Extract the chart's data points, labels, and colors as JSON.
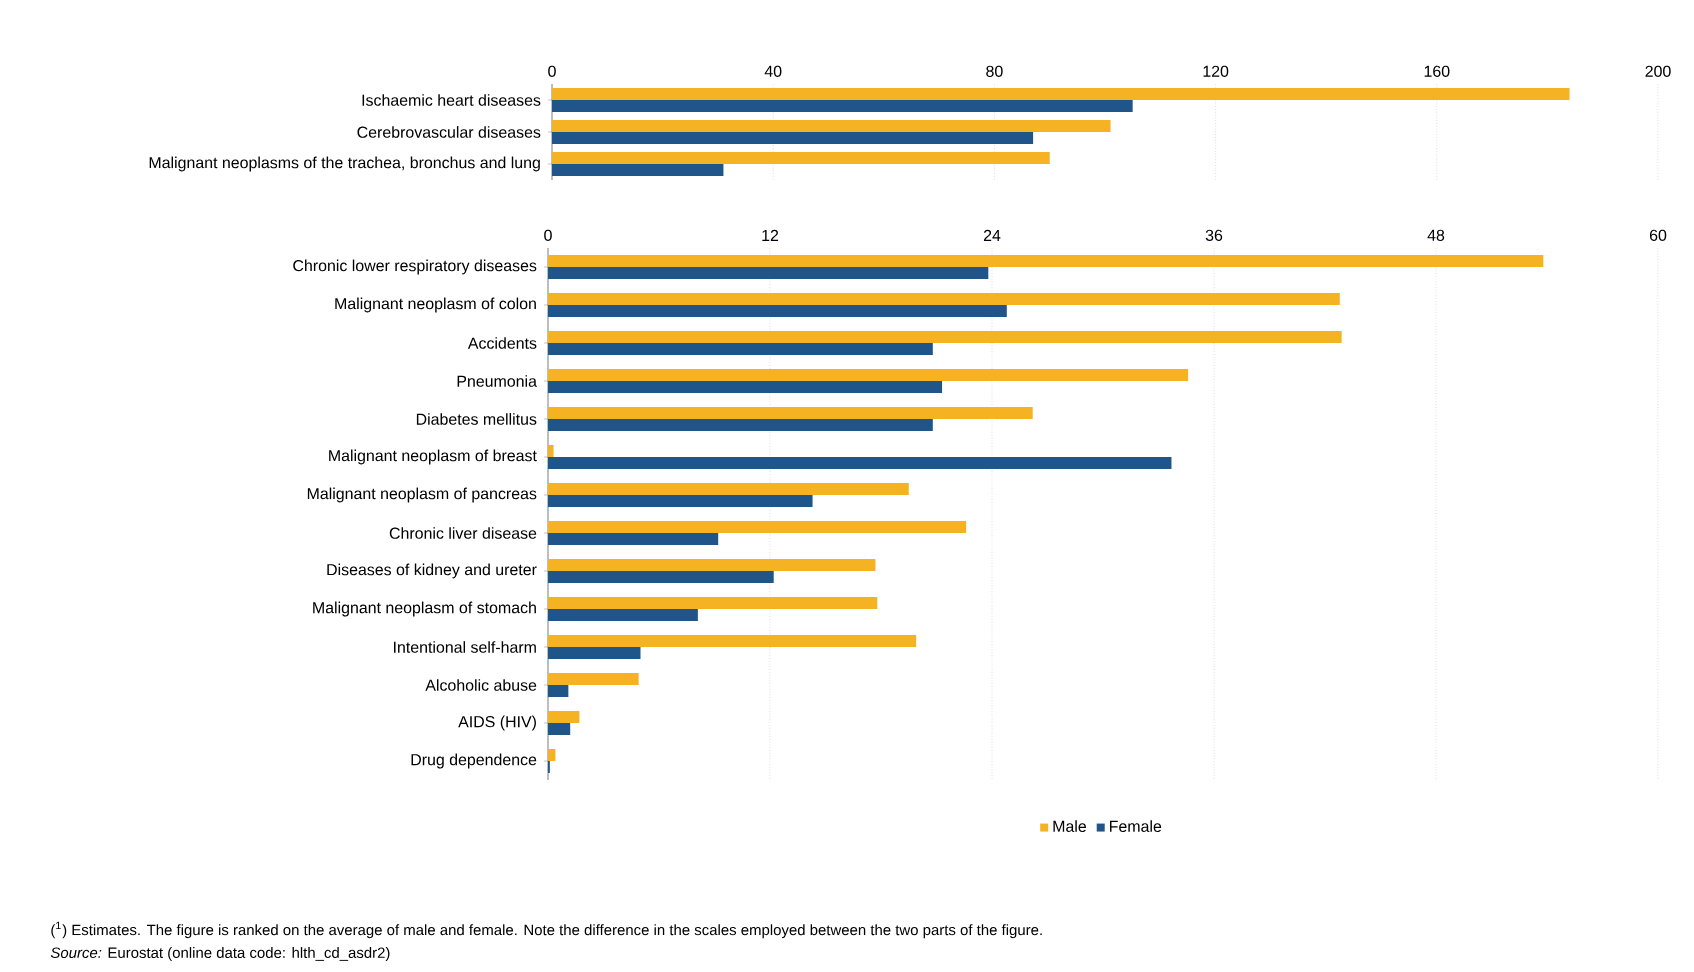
{
  "chart_data": [
    {
      "type": "bar",
      "orientation": "horizontal",
      "categories": [
        "Ischaemic heart diseases",
        "Cerebrovascular diseases",
        "Malignant neoplasms of the trachea, bronchus and lung"
      ],
      "series": [
        {
          "color": "#f5b324",
          "values": [
            184,
            101,
            90
          ]
        },
        {
          "color": "#1f5588",
          "values": [
            105,
            87,
            31
          ]
        }
      ],
      "xlim": [
        0,
        200
      ],
      "xticks": [
        0,
        40,
        80,
        120,
        160,
        200
      ],
      "grid": "x"
    },
    {
      "type": "bar",
      "orientation": "horizontal",
      "categories": [
        "Chronic lower respiratory diseases",
        "Malignant neoplasm of colon",
        "Accidents",
        "Pneumonia",
        "Diabetes mellitus",
        "Malignant neoplasm of breast",
        "Malignant neoplasm of pancreas",
        "Chronic liver disease",
        "Diseases of kidney and ureter",
        "Malignant neoplasm of stomach",
        "Intentional self-harm",
        "Alcoholic abuse",
        "AIDS (HIV)",
        "Drug dependence"
      ],
      "series": [
        {
          "name": "Male",
          "color": "#f5b324",
          "values": [
            53.8,
            42.8,
            42.9,
            34.6,
            26.2,
            0.3,
            19.5,
            22.6,
            17.7,
            17.8,
            19.9,
            4.9,
            1.7,
            0.4
          ]
        },
        {
          "name": "Female",
          "color": "#1f5588",
          "values": [
            23.8,
            24.8,
            20.8,
            21.3,
            20.8,
            33.7,
            14.3,
            9.2,
            12.2,
            8.1,
            5.0,
            1.1,
            1.2,
            0.1
          ]
        }
      ],
      "xlim": [
        0,
        60
      ],
      "xticks": [
        0,
        12,
        24,
        36,
        48,
        60
      ],
      "grid": "x",
      "legend": "bottom",
      "annotations": [
        "($^{1}$) Estimates. The figure is ranked on the average of male and female. Note the difference in the scales employed between the two parts of the figure.",
        "*Source:* Eurostat (online data code: hlth_cd_asdr2)"
      ]
    }
  ]
}
